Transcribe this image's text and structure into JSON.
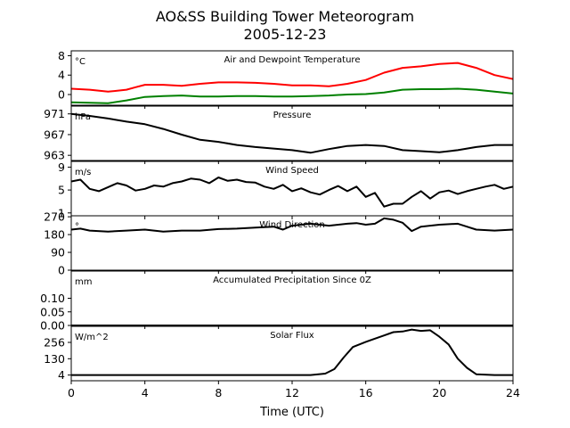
{
  "figure": {
    "title_line1": "AO&SS Building Tower Meteorogram",
    "title_line2": "2005-12-23",
    "xlabel": "Time (UTC)"
  },
  "chart_data": {
    "type": "line",
    "x_unit": "hours UTC",
    "xlim": [
      0,
      24
    ],
    "xticks": [
      0,
      4,
      8,
      12,
      16,
      20,
      24
    ],
    "panels": [
      {
        "id": "temperature",
        "title": "Air and Dewpoint Temperature",
        "unit": "°C",
        "ylim": [
          -2.2,
          9
        ],
        "yticks": [
          0,
          4,
          8
        ],
        "ytick_labels": [
          "0",
          "4",
          "8"
        ],
        "series": [
          {
            "name": "",
            "color": "#ff0000",
            "x": [
              0,
              1,
              2,
              3,
              3.5,
              4,
              5,
              6,
              7,
              8,
              9,
              10,
              11,
              12,
              13,
              14,
              15,
              16,
              17,
              18,
              19,
              20,
              21,
              22,
              23,
              24
            ],
            "y": [
              1.2,
              1.0,
              0.6,
              1.0,
              1.5,
              2.0,
              2.0,
              1.8,
              2.2,
              2.5,
              2.5,
              2.4,
              2.2,
              1.9,
              1.9,
              1.7,
              2.2,
              3.0,
              4.5,
              5.5,
              5.8,
              6.3,
              6.5,
              5.5,
              4.0,
              3.2
            ]
          },
          {
            "name": "",
            "color": "#008000",
            "x": [
              0,
              1,
              2,
              3,
              4,
              5,
              6,
              7,
              8,
              9,
              10,
              11,
              12,
              13,
              14,
              15,
              16,
              17,
              18,
              19,
              20,
              21,
              22,
              23,
              24
            ],
            "y": [
              -1.6,
              -1.7,
              -1.8,
              -1.2,
              -0.5,
              -0.3,
              -0.2,
              -0.4,
              -0.4,
              -0.3,
              -0.3,
              -0.4,
              -0.4,
              -0.3,
              -0.2,
              0.0,
              0.1,
              0.4,
              1.0,
              1.1,
              1.1,
              1.2,
              1.0,
              0.6,
              0.2
            ]
          }
        ]
      },
      {
        "id": "pressure",
        "title": "Pressure",
        "unit": "hPa",
        "ylim": [
          962,
          972.5
        ],
        "yticks": [
          963,
          967,
          971
        ],
        "ytick_labels": [
          "963",
          "967",
          "971"
        ],
        "series": [
          {
            "name": "",
            "color": "#000000",
            "x": [
              0,
              1,
              2,
              3,
              4,
              5,
              6,
              7,
              8,
              9,
              10,
              11,
              12,
              13,
              14,
              15,
              16,
              17,
              18,
              19,
              20,
              21,
              22,
              23,
              24
            ],
            "y": [
              971.0,
              970.6,
              970.1,
              969.5,
              969.0,
              968.1,
              967.0,
              966.0,
              965.6,
              965.0,
              964.6,
              964.3,
              964.0,
              963.5,
              964.2,
              964.8,
              965.0,
              964.8,
              964.0,
              963.8,
              963.6,
              964.0,
              964.6,
              965.0,
              965.0
            ]
          }
        ]
      },
      {
        "id": "wind_speed",
        "title": "Wind Speed",
        "unit": "m/s",
        "ylim": [
          0.5,
          10
        ],
        "yticks": [
          1,
          5,
          9
        ],
        "ytick_labels": [
          "1",
          "5",
          "9"
        ],
        "series": [
          {
            "name": "",
            "color": "#000000",
            "x": [
              0,
              0.5,
              1,
              1.5,
              2,
              2.5,
              3,
              3.5,
              4,
              4.5,
              5,
              5.5,
              6,
              6.5,
              7,
              7.5,
              8,
              8.5,
              9,
              9.5,
              10,
              10.5,
              11,
              11.5,
              12,
              12.5,
              13,
              13.5,
              14,
              14.5,
              15,
              15.5,
              16,
              16.5,
              17,
              17.5,
              18,
              18.5,
              19,
              19.5,
              20,
              20.5,
              21,
              21.5,
              22,
              22.5,
              23,
              23.5,
              24
            ],
            "y": [
              6.5,
              6.8,
              5.2,
              4.8,
              5.5,
              6.2,
              5.8,
              4.9,
              5.2,
              5.8,
              5.6,
              6.2,
              6.5,
              7.0,
              6.8,
              6.2,
              7.2,
              6.6,
              6.8,
              6.4,
              6.3,
              5.6,
              5.2,
              5.9,
              4.8,
              5.3,
              4.6,
              4.2,
              5.0,
              5.7,
              4.8,
              5.6,
              3.8,
              4.5,
              2.1,
              2.6,
              2.6,
              3.8,
              4.8,
              3.5,
              4.6,
              4.9,
              4.3,
              4.8,
              5.2,
              5.6,
              5.9,
              5.2,
              5.6
            ]
          }
        ]
      },
      {
        "id": "wind_direction",
        "title": "Wind Direction",
        "unit": "°",
        "ylim": [
          0,
          275
        ],
        "yticks": [
          0,
          90,
          180,
          270
        ],
        "ytick_labels": [
          "0",
          "90",
          "180",
          "270"
        ],
        "series": [
          {
            "name": "",
            "color": "#000000",
            "x": [
              0,
              0.5,
              1,
              2,
              3,
              4,
              5,
              6,
              7,
              8,
              9,
              10,
              11,
              11.5,
              12,
              13,
              14,
              15,
              15.5,
              16,
              16.5,
              17,
              17.5,
              18,
              18.5,
              19,
              20,
              21,
              22,
              23,
              24
            ],
            "y": [
              205,
              210,
              200,
              195,
              200,
              205,
              195,
              200,
              200,
              208,
              210,
              215,
              220,
              205,
              225,
              235,
              225,
              235,
              238,
              230,
              235,
              262,
              255,
              240,
              198,
              220,
              230,
              235,
              205,
              200,
              205
            ]
          }
        ]
      },
      {
        "id": "precipitation",
        "title": "Accumulated Precipitation Since 0Z",
        "unit": "mm",
        "ylim": [
          0,
          0.2
        ],
        "yticks": [
          0,
          0.05,
          0.1
        ],
        "ytick_labels": [
          "0.00",
          "0.05",
          "0.10"
        ],
        "series": [
          {
            "name": "",
            "color": "#000000",
            "x": [
              0,
              24
            ],
            "y": [
              0,
              0
            ]
          }
        ]
      },
      {
        "id": "solar_flux",
        "title": "Solar Flux",
        "unit": "W/m^2",
        "ylim": [
          -40,
          380
        ],
        "yticks": [
          4,
          130,
          256
        ],
        "ytick_labels": [
          "4",
          "130",
          "256"
        ],
        "series": [
          {
            "name": "",
            "color": "#000000",
            "x": [
              0,
              13,
              13.8,
              14.3,
              14.8,
              15.3,
              16,
              17,
              17.5,
              18,
              18.5,
              19,
              19.5,
              20,
              20.5,
              21,
              21.5,
              22,
              23,
              24
            ],
            "y": [
              4,
              4,
              15,
              50,
              140,
              220,
              260,
              310,
              335,
              340,
              355,
              345,
              350,
              300,
              240,
              130,
              60,
              10,
              4,
              4
            ]
          }
        ]
      }
    ]
  }
}
